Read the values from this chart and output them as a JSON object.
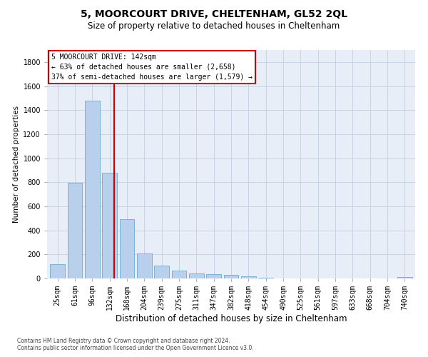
{
  "title": "5, MOORCOURT DRIVE, CHELTENHAM, GL52 2QL",
  "subtitle": "Size of property relative to detached houses in Cheltenham",
  "xlabel": "Distribution of detached houses by size in Cheltenham",
  "ylabel": "Number of detached properties",
  "footer1": "Contains HM Land Registry data © Crown copyright and database right 2024.",
  "footer2": "Contains public sector information licensed under the Open Government Licence v3.0.",
  "categories": [
    "25sqm",
    "61sqm",
    "96sqm",
    "132sqm",
    "168sqm",
    "204sqm",
    "239sqm",
    "275sqm",
    "311sqm",
    "347sqm",
    "382sqm",
    "418sqm",
    "454sqm",
    "490sqm",
    "525sqm",
    "561sqm",
    "597sqm",
    "633sqm",
    "668sqm",
    "704sqm",
    "740sqm"
  ],
  "values": [
    120,
    795,
    1480,
    880,
    495,
    205,
    105,
    65,
    42,
    35,
    28,
    20,
    5,
    0,
    0,
    0,
    0,
    0,
    0,
    0,
    12
  ],
  "bar_color": "#b8d0ec",
  "bar_edge_color": "#6aaad4",
  "grid_color": "#c8d4e4",
  "background_color": "#e8eef8",
  "annotation_line1": "5 MOORCOURT DRIVE: 142sqm",
  "annotation_line2": "← 63% of detached houses are smaller (2,658)",
  "annotation_line3": "37% of semi-detached houses are larger (1,579) →",
  "annotation_box_facecolor": "#ffffff",
  "annotation_box_edgecolor": "#cc0000",
  "vline_x": 3.28,
  "vline_color": "#cc0000",
  "ylim": [
    0,
    1900
  ],
  "yticks": [
    0,
    200,
    400,
    600,
    800,
    1000,
    1200,
    1400,
    1600,
    1800
  ],
  "title_fontsize": 10,
  "subtitle_fontsize": 8.5,
  "xlabel_fontsize": 8.5,
  "ylabel_fontsize": 7.5,
  "tick_fontsize": 7,
  "annotation_fontsize": 7,
  "footer_fontsize": 5.5
}
